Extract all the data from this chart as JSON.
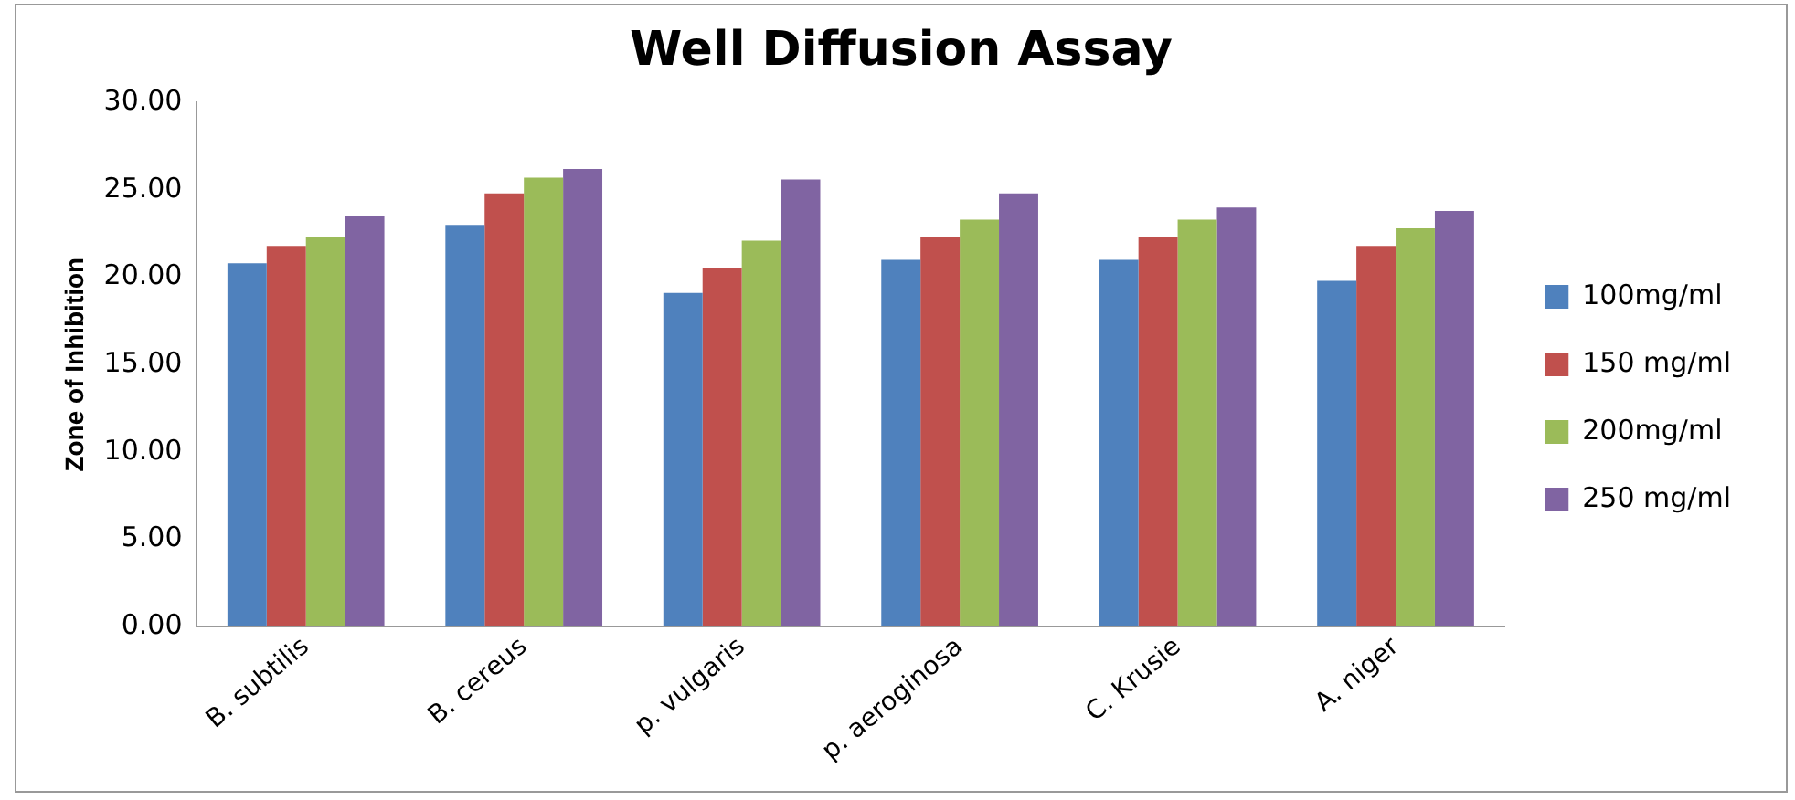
{
  "chart_data": {
    "type": "bar",
    "title": "Well Diffusion Assay",
    "ylabel": "Zone of Inhibition",
    "categories": [
      "B. subtilis",
      "B. cereus",
      "p. vulgaris",
      "p. aeroginosa",
      "C. Krusie",
      "A. niger"
    ],
    "series": [
      {
        "name": "100mg/ml",
        "color": "#4f81bd",
        "values": [
          20.8,
          23.0,
          19.1,
          21.0,
          21.0,
          19.8
        ]
      },
      {
        "name": "150 mg/ml",
        "color": "#c0504d",
        "values": [
          21.8,
          24.8,
          20.5,
          22.3,
          22.3,
          21.8
        ]
      },
      {
        "name": "200mg/ml",
        "color": "#9bbb59",
        "values": [
          22.3,
          25.7,
          22.1,
          23.3,
          23.3,
          22.8
        ]
      },
      {
        "name": "250 mg/ml",
        "color": "#8064a2",
        "values": [
          23.5,
          26.2,
          25.6,
          24.8,
          24.0,
          23.8
        ]
      }
    ],
    "ylim": [
      0,
      30
    ],
    "yticks": [
      {
        "value": 0,
        "label": "0.00"
      },
      {
        "value": 5,
        "label": "5.00"
      },
      {
        "value": 10,
        "label": "10.00"
      },
      {
        "value": 15,
        "label": "15.00"
      },
      {
        "value": 20,
        "label": "20.00"
      },
      {
        "value": 25,
        "label": "25.00"
      },
      {
        "value": 30,
        "label": "30.00"
      }
    ],
    "grid": false,
    "legend": "right"
  }
}
